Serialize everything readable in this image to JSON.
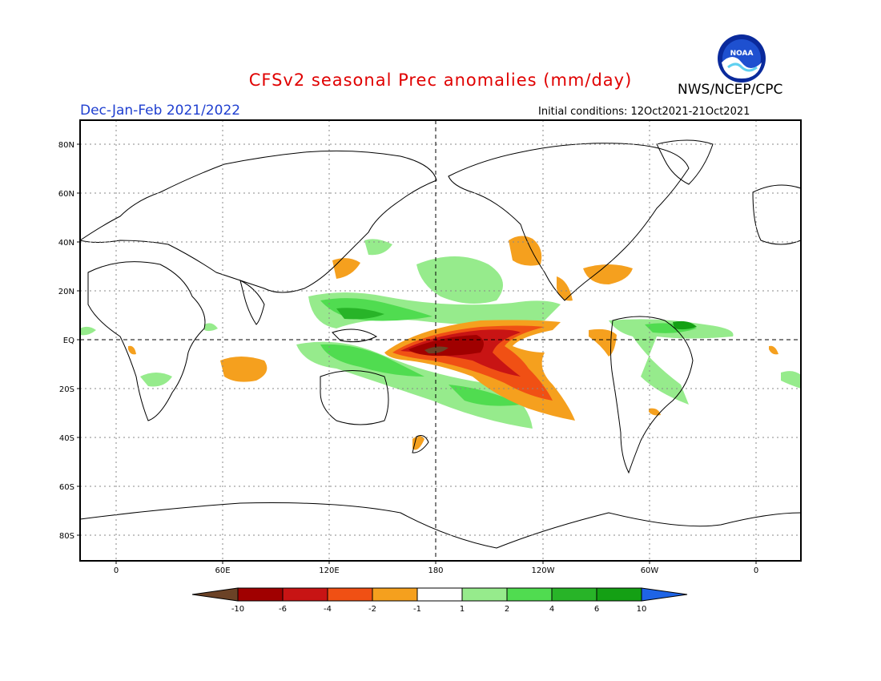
{
  "header": {
    "title": "CFSv2 seasonal Prec anomalies (mm/day)",
    "season": "Dec-Jan-Feb 2021/2022",
    "initial_conditions": "Initial conditions: 12Oct2021-21Oct2021",
    "organization": "NWS/NCEP/CPC",
    "logo_text": "NOAA"
  },
  "axes": {
    "lat_labels": [
      "80N",
      "60N",
      "40N",
      "20N",
      "EQ",
      "20S",
      "40S",
      "60S",
      "80S"
    ],
    "lon_labels": [
      "0",
      "60E",
      "120E",
      "180",
      "120W",
      "60W",
      "0"
    ]
  },
  "colorbar": {
    "labels": [
      "-10",
      "-6",
      "-4",
      "-2",
      "-1",
      "1",
      "2",
      "4",
      "6",
      "10"
    ],
    "colors": [
      "#6b4226",
      "#a00000",
      "#c81414",
      "#f05014",
      "#f5a01e",
      "#ffffff",
      "#96eb8c",
      "#50dc50",
      "#28b428",
      "#14a014",
      "#1e64e6"
    ]
  },
  "colors": {
    "title": "#e00000",
    "season": "#1f3fd0",
    "frame": "#000000"
  }
}
